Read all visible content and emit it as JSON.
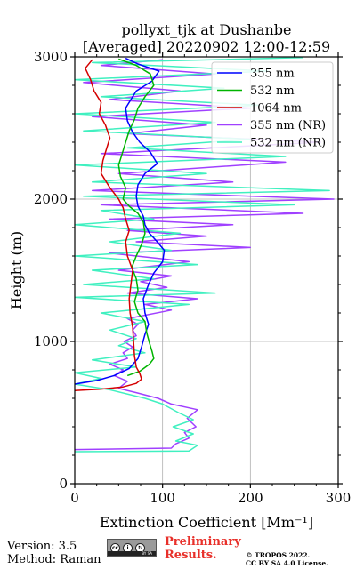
{
  "chart_data": {
    "type": "line",
    "title": [
      "pollyxt_tjk at Dushanbe",
      "[Averaged] 20220902 12:00-12:59"
    ],
    "xlabel": "Extinction Coefficient [Mm⁻¹]",
    "ylabel": "Height (m)",
    "xlim": [
      0,
      300
    ],
    "ylim": [
      0,
      3000
    ],
    "xticks": [
      0,
      100,
      200,
      300
    ],
    "yticks": [
      0,
      1000,
      2000,
      3000
    ],
    "grid": true,
    "legend_position": "top-right",
    "series": [
      {
        "name": "355 nm",
        "color": "#0000ff",
        "points": [
          [
            0,
            700
          ],
          [
            25,
            725
          ],
          [
            45,
            760
          ],
          [
            62,
            810
          ],
          [
            72,
            880
          ],
          [
            76,
            960
          ],
          [
            80,
            1050
          ],
          [
            84,
            1120
          ],
          [
            80,
            1200
          ],
          [
            78,
            1300
          ],
          [
            84,
            1400
          ],
          [
            90,
            1480
          ],
          [
            100,
            1560
          ],
          [
            102,
            1640
          ],
          [
            94,
            1700
          ],
          [
            85,
            1760
          ],
          [
            80,
            1820
          ],
          [
            78,
            1880
          ],
          [
            72,
            1950
          ],
          [
            70,
            2020
          ],
          [
            72,
            2100
          ],
          [
            80,
            2180
          ],
          [
            94,
            2250
          ],
          [
            86,
            2330
          ],
          [
            74,
            2400
          ],
          [
            66,
            2470
          ],
          [
            60,
            2550
          ],
          [
            58,
            2640
          ],
          [
            64,
            2700
          ],
          [
            70,
            2760
          ],
          [
            88,
            2830
          ],
          [
            96,
            2900
          ],
          [
            72,
            2950
          ],
          [
            58,
            2990
          ]
        ]
      },
      {
        "name": "532 nm",
        "color": "#00b400",
        "points": [
          [
            60,
            760
          ],
          [
            74,
            790
          ],
          [
            85,
            840
          ],
          [
            90,
            880
          ],
          [
            88,
            930
          ],
          [
            85,
            990
          ],
          [
            82,
            1060
          ],
          [
            80,
            1140
          ],
          [
            72,
            1200
          ],
          [
            68,
            1280
          ],
          [
            72,
            1360
          ],
          [
            70,
            1440
          ],
          [
            65,
            1520
          ],
          [
            70,
            1600
          ],
          [
            76,
            1680
          ],
          [
            80,
            1760
          ],
          [
            78,
            1840
          ],
          [
            72,
            1900
          ],
          [
            62,
            1950
          ],
          [
            55,
            2000
          ],
          [
            58,
            2080
          ],
          [
            52,
            2160
          ],
          [
            50,
            2240
          ],
          [
            54,
            2320
          ],
          [
            58,
            2400
          ],
          [
            62,
            2480
          ],
          [
            68,
            2560
          ],
          [
            72,
            2640
          ],
          [
            80,
            2720
          ],
          [
            90,
            2800
          ],
          [
            86,
            2880
          ],
          [
            70,
            2940
          ],
          [
            50,
            2985
          ]
        ]
      },
      {
        "name": "1064 nm",
        "color": "#d40000",
        "points": [
          [
            0,
            655
          ],
          [
            30,
            665
          ],
          [
            55,
            680
          ],
          [
            70,
            705
          ],
          [
            76,
            735
          ],
          [
            74,
            775
          ],
          [
            70,
            820
          ],
          [
            68,
            900
          ],
          [
            67,
            1000
          ],
          [
            66,
            1100
          ],
          [
            63,
            1200
          ],
          [
            62,
            1300
          ],
          [
            64,
            1400
          ],
          [
            66,
            1500
          ],
          [
            60,
            1600
          ],
          [
            58,
            1700
          ],
          [
            62,
            1780
          ],
          [
            58,
            1860
          ],
          [
            55,
            1940
          ],
          [
            50,
            2000
          ],
          [
            40,
            2080
          ],
          [
            30,
            2180
          ],
          [
            32,
            2270
          ],
          [
            36,
            2350
          ],
          [
            40,
            2430
          ],
          [
            35,
            2520
          ],
          [
            28,
            2600
          ],
          [
            30,
            2680
          ],
          [
            22,
            2760
          ],
          [
            18,
            2840
          ],
          [
            12,
            2920
          ],
          [
            20,
            2980
          ]
        ]
      },
      {
        "name": "355 nm (NR)",
        "color": "#a040ff",
        "points": [
          [
            0,
            240
          ],
          [
            110,
            250
          ],
          [
            115,
            280
          ],
          [
            130,
            320
          ],
          [
            125,
            360
          ],
          [
            138,
            400
          ],
          [
            128,
            460
          ],
          [
            140,
            520
          ],
          [
            110,
            560
          ],
          [
            95,
            600
          ],
          [
            70,
            640
          ],
          [
            50,
            670
          ],
          [
            60,
            720
          ],
          [
            45,
            760
          ],
          [
            55,
            800
          ],
          [
            40,
            840
          ],
          [
            60,
            880
          ],
          [
            55,
            920
          ],
          [
            66,
            960
          ],
          [
            56,
            1000
          ],
          [
            70,
            1040
          ],
          [
            66,
            1080
          ],
          [
            72,
            1120
          ],
          [
            60,
            1160
          ],
          [
            110,
            1220
          ],
          [
            80,
            1260
          ],
          [
            140,
            1300
          ],
          [
            60,
            1340
          ],
          [
            105,
            1380
          ],
          [
            75,
            1420
          ],
          [
            110,
            1460
          ],
          [
            50,
            1500
          ],
          [
            130,
            1560
          ],
          [
            40,
            1620
          ],
          [
            200,
            1660
          ],
          [
            70,
            1700
          ],
          [
            150,
            1740
          ],
          [
            60,
            1780
          ],
          [
            180,
            1820
          ],
          [
            40,
            1860
          ],
          [
            260,
            1900
          ],
          [
            30,
            1960
          ],
          [
            295,
            2000
          ],
          [
            20,
            2060
          ],
          [
            180,
            2120
          ],
          [
            50,
            2180
          ],
          [
            240,
            2260
          ],
          [
            30,
            2320
          ],
          [
            280,
            2400
          ],
          [
            60,
            2460
          ],
          [
            150,
            2520
          ],
          [
            20,
            2580
          ],
          [
            200,
            2640
          ],
          [
            40,
            2700
          ],
          [
            120,
            2760
          ],
          [
            10,
            2820
          ],
          [
            160,
            2880
          ],
          [
            30,
            2940
          ],
          [
            100,
            2980
          ]
        ]
      },
      {
        "name": "532 nm (NR)",
        "color": "#40f0c0",
        "points": [
          [
            0,
            225
          ],
          [
            130,
            230
          ],
          [
            140,
            270
          ],
          [
            115,
            300
          ],
          [
            135,
            350
          ],
          [
            112,
            400
          ],
          [
            135,
            450
          ],
          [
            118,
            500
          ],
          [
            100,
            560
          ],
          [
            80,
            600
          ],
          [
            40,
            660
          ],
          [
            0,
            700
          ],
          [
            30,
            740
          ],
          [
            0,
            780
          ],
          [
            70,
            820
          ],
          [
            20,
            870
          ],
          [
            80,
            920
          ],
          [
            50,
            970
          ],
          [
            70,
            1020
          ],
          [
            40,
            1080
          ],
          [
            80,
            1140
          ],
          [
            30,
            1200
          ],
          [
            130,
            1260
          ],
          [
            0,
            1310
          ],
          [
            160,
            1340
          ],
          [
            10,
            1400
          ],
          [
            90,
            1440
          ],
          [
            20,
            1500
          ],
          [
            140,
            1540
          ],
          [
            0,
            1600
          ],
          [
            110,
            1640
          ],
          [
            40,
            1700
          ],
          [
            120,
            1760
          ],
          [
            0,
            1820
          ],
          [
            90,
            1860
          ],
          [
            30,
            1920
          ],
          [
            250,
            1960
          ],
          [
            10,
            2020
          ],
          [
            290,
            2060
          ],
          [
            20,
            2120
          ],
          [
            150,
            2180
          ],
          [
            0,
            2240
          ],
          [
            240,
            2300
          ],
          [
            60,
            2360
          ],
          [
            200,
            2420
          ],
          [
            10,
            2480
          ],
          [
            160,
            2540
          ],
          [
            0,
            2600
          ],
          [
            210,
            2660
          ],
          [
            30,
            2720
          ],
          [
            170,
            2780
          ],
          [
            0,
            2840
          ],
          [
            220,
            2900
          ],
          [
            20,
            2960
          ],
          [
            260,
            2995
          ]
        ]
      }
    ]
  },
  "footer": {
    "version": "Version: 3.5",
    "method": "Method: Raman",
    "license_badge": "cc-by-sa-icon",
    "preliminary_line1": "Preliminary",
    "preliminary_line2": "Results.",
    "copyright_line1": "© TROPOS 2022.",
    "copyright_line2": "CC BY SA 4.0 License."
  }
}
